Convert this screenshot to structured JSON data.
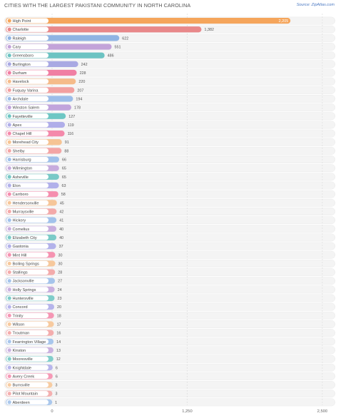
{
  "title": "CITIES WITH THE LARGEST PAKISTANI COMMUNITY IN NORTH CAROLINA",
  "source": "Source: ZipAtlas.com",
  "chart_data": {
    "type": "bar",
    "orientation": "horizontal",
    "title": "CITIES WITH THE LARGEST PAKISTANI COMMUNITY IN NORTH CAROLINA",
    "xlim": [
      0,
      2500
    ],
    "ticks": [
      0,
      1250,
      2500
    ],
    "tick_labels": [
      "0",
      "1,250",
      "2,500"
    ],
    "grid": true,
    "categories": [
      "High Point",
      "Charlotte",
      "Raleigh",
      "Cary",
      "Greensboro",
      "Burlington",
      "Durham",
      "Havelock",
      "Fuquay Varina",
      "Archdale",
      "Winston Salem",
      "Fayetteville",
      "Apex",
      "Chapel Hill",
      "Morehead City",
      "Shelby",
      "Harrisburg",
      "Wilmington",
      "Asheville",
      "Elon",
      "Carrboro",
      "Hendersonville",
      "Murraysville",
      "Hickory",
      "Cornelius",
      "Elizabeth City",
      "Gastonia",
      "Mint Hill",
      "Boiling Springs",
      "Stallings",
      "Jacksonville",
      "Holly Springs",
      "Huntersville",
      "Concord",
      "Trinity",
      "Wilson",
      "Troutman",
      "Fearrington Village",
      "Kinston",
      "Mooresville",
      "Knightdale",
      "Avery Creek",
      "Burnsville",
      "Pilot Mountain",
      "Aberdeen"
    ],
    "values": [
      2205,
      1382,
      622,
      551,
      486,
      242,
      228,
      220,
      207,
      194,
      178,
      127,
      119,
      116,
      91,
      88,
      66,
      65,
      65,
      63,
      58,
      45,
      42,
      41,
      40,
      40,
      37,
      30,
      30,
      28,
      27,
      24,
      23,
      20,
      18,
      17,
      16,
      14,
      13,
      12,
      6,
      6,
      3,
      3,
      1
    ],
    "value_labels": [
      "2,205",
      "1,382",
      "622",
      "551",
      "486",
      "242",
      "228",
      "220",
      "207",
      "194",
      "178",
      "127",
      "119",
      "116",
      "91",
      "88",
      "66",
      "65",
      "65",
      "63",
      "58",
      "45",
      "42",
      "41",
      "40",
      "40",
      "37",
      "30",
      "30",
      "28",
      "27",
      "24",
      "23",
      "20",
      "18",
      "17",
      "16",
      "14",
      "13",
      "12",
      "6",
      "6",
      "3",
      "3",
      "1"
    ],
    "colors": [
      "#f5a55b",
      "#e8888a",
      "#8fb4e3",
      "#c3a3d9",
      "#6cc3c2",
      "#a9a9e3",
      "#f07fa3",
      "#f5bb8a",
      "#f2a0a0",
      "#9cbde9",
      "#c1a4dc",
      "#6ec7c4",
      "#b0aee9",
      "#f48aab",
      "#f6c494",
      "#f3a5a5",
      "#9fc0ea",
      "#c7acdd",
      "#79c9c7",
      "#b1b0ea",
      "#f58eae",
      "#f6c699",
      "#f3a9a9",
      "#a2c2eb",
      "#c8aede",
      "#7bcbc8",
      "#b3b2ea",
      "#f593b1",
      "#f6c89c",
      "#f3abab",
      "#a5c4eb",
      "#c9b0df",
      "#7fcdca",
      "#b6b4eb",
      "#f596b4",
      "#f7ca9f",
      "#f4adad",
      "#a8c6ec",
      "#cab2e0",
      "#82cecb",
      "#b8b6ec",
      "#f699b6",
      "#f7cca2",
      "#f4b0b0",
      "#abc8ec"
    ]
  }
}
